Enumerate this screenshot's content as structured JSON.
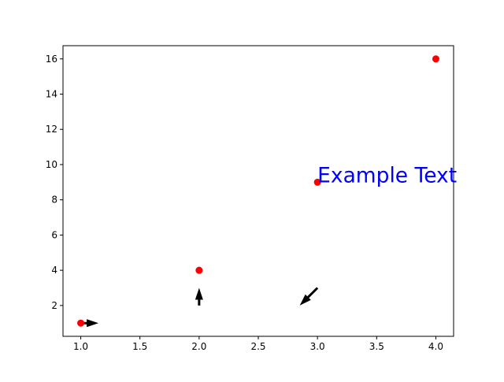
{
  "chart_data": {
    "type": "scatter",
    "title": "",
    "xlabel": "",
    "ylabel": "",
    "xlim": [
      0.85,
      4.15
    ],
    "ylim": [
      0.25,
      16.75
    ],
    "grid": false,
    "x_ticks": [
      1.0,
      1.5,
      2.0,
      2.5,
      3.0,
      3.5,
      4.0
    ],
    "x_tick_labels": [
      "1.0",
      "1.5",
      "2.0",
      "2.5",
      "3.0",
      "3.5",
      "4.0"
    ],
    "y_ticks": [
      2,
      4,
      6,
      8,
      10,
      12,
      14,
      16
    ],
    "y_tick_labels": [
      "2",
      "4",
      "6",
      "8",
      "10",
      "12",
      "14",
      "16"
    ],
    "points": [
      {
        "x": 1,
        "y": 1
      },
      {
        "x": 2,
        "y": 4
      },
      {
        "x": 3,
        "y": 9
      },
      {
        "x": 4,
        "y": 16
      }
    ],
    "point_color": "#ff0000",
    "arrows": [
      {
        "x": 1,
        "y": 1,
        "dx": 0.15,
        "dy": 0
      },
      {
        "x": 2,
        "y": 2,
        "dx": 0,
        "dy": 1
      },
      {
        "x": 3,
        "y": 3,
        "dx": -0.15,
        "dy": -1
      }
    ],
    "arrow_color": "#000000",
    "annotations": [
      {
        "text": "Example Text",
        "x": 3,
        "y": 9,
        "color": "#0000ff"
      }
    ]
  }
}
